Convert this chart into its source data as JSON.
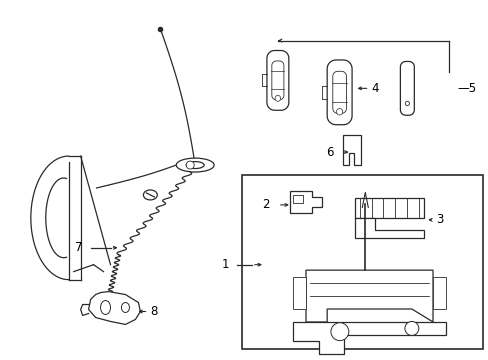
{
  "bg_color": "#ffffff",
  "line_color": "#2a2a2a",
  "text_color": "#000000",
  "figsize": [
    4.89,
    3.6
  ],
  "dpi": 100
}
